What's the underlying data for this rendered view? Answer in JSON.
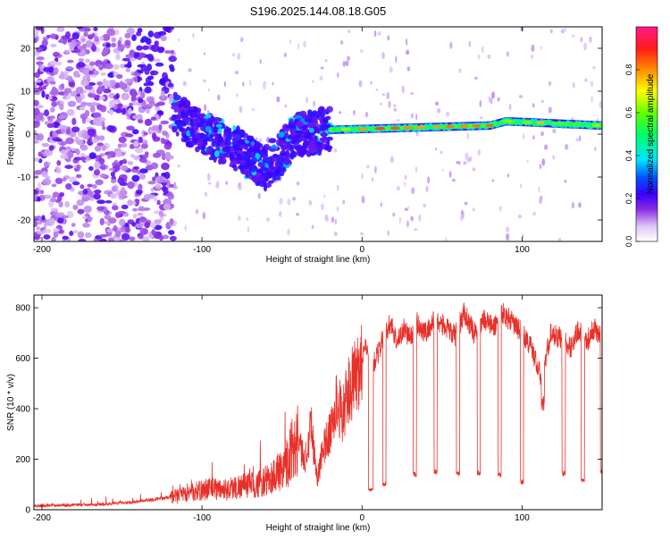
{
  "title": "S196.2025.144.08.18.G05",
  "chart_data": [
    {
      "type": "heatmap",
      "xlabel": "Height of straight line (km)",
      "ylabel": "Frequency (Hz)",
      "xlim": [
        -205,
        150
      ],
      "ylim": [
        -25,
        25
      ],
      "x_ticks": [
        -200,
        -100,
        0,
        100
      ],
      "y_ticks": [
        -20,
        -10,
        0,
        10,
        20
      ],
      "colorbar": {
        "label": "Normalized spectral amplitude",
        "range": [
          0,
          1
        ],
        "ticks": [
          0.0,
          0.2,
          0.4,
          0.6,
          0.8
        ]
      },
      "features": [
        {
          "x_range": [
            -205,
            -118
          ],
          "freq_range": [
            -25,
            25
          ],
          "amplitude": 0.12
        },
        {
          "x_range": [
            -118,
            -20
          ],
          "freq_trend": [
            [
              -118,
              5
            ],
            [
              -100,
              0
            ],
            [
              -80,
              -3
            ],
            [
              -60,
              -8
            ],
            [
              -40,
              0
            ],
            [
              -20,
              1
            ]
          ],
          "amplitude": 0.2
        },
        {
          "x_range": [
            -20,
            150
          ],
          "freq_trend": [
            [
              -20,
              1
            ],
            [
              80,
              2
            ],
            [
              90,
              3
            ],
            [
              150,
              2
            ]
          ],
          "amplitude": 0.8
        }
      ]
    },
    {
      "type": "line",
      "xlabel": "Height of straight line (km)",
      "ylabel": "SNR (10 * v/v)",
      "xlim": [
        -205,
        150
      ],
      "ylim": [
        0,
        850
      ],
      "x_ticks": [
        -200,
        -100,
        0,
        100
      ],
      "y_ticks": [
        0,
        200,
        400,
        600,
        800
      ],
      "color": "#e8302a",
      "series": [
        {
          "name": "",
          "x": [
            -205,
            -190,
            -175,
            -160,
            -145,
            -130,
            -115,
            -105,
            -95,
            -85,
            -75,
            -65,
            -58,
            -52,
            -46,
            -40,
            -36,
            -32,
            -28,
            -24,
            -20,
            -16,
            -12,
            -8,
            -4,
            0,
            3,
            6,
            10,
            14,
            18,
            22,
            26,
            30,
            34,
            40,
            46,
            52,
            58,
            64,
            70,
            76,
            82,
            88,
            94,
            100,
            106,
            112,
            118,
            124,
            130,
            136,
            140,
            145,
            150
          ],
          "y": [
            15,
            18,
            20,
            22,
            30,
            40,
            55,
            70,
            85,
            80,
            95,
            100,
            120,
            150,
            200,
            300,
            180,
            350,
            120,
            250,
            300,
            420,
            380,
            480,
            520,
            600,
            650,
            560,
            620,
            700,
            740,
            660,
            720,
            680,
            740,
            700,
            760,
            720,
            690,
            780,
            700,
            760,
            720,
            780,
            740,
            700,
            640,
            520,
            700,
            680,
            640,
            720,
            660,
            720,
            680
          ]
        }
      ],
      "dropouts": [
        {
          "x_range": [
            4,
            7
          ],
          "value": 80
        },
        {
          "x_range": [
            13,
            15
          ],
          "value": 100
        },
        {
          "x_range": [
            32,
            34
          ],
          "value": 140
        },
        {
          "x_range": [
            45,
            47
          ],
          "value": 150
        },
        {
          "x_range": [
            59,
            61
          ],
          "value": 145
        },
        {
          "x_range": [
            72,
            74
          ],
          "value": 145
        },
        {
          "x_range": [
            85,
            87
          ],
          "value": 140
        },
        {
          "x_range": [
            99,
            101
          ],
          "value": 110
        },
        {
          "x_range": [
            112,
            114
          ],
          "value": 420
        },
        {
          "x_range": [
            125,
            127
          ],
          "value": 145
        },
        {
          "x_range": [
            137,
            139
          ],
          "value": 115
        },
        {
          "x_range": [
            149,
            150
          ],
          "value": 150
        }
      ]
    }
  ]
}
